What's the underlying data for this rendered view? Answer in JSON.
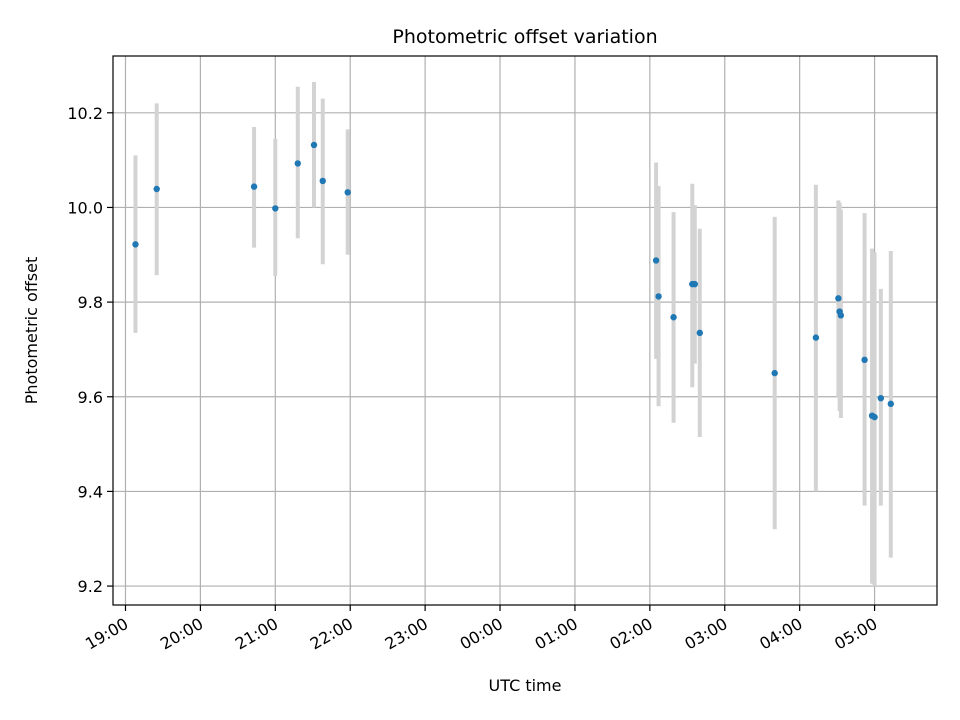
{
  "chart_data": {
    "type": "scatter",
    "title": "Photometric offset variation",
    "xlabel": "UTC time",
    "ylabel": "Photometric offset",
    "xlim": [
      "18:50",
      "05:50"
    ],
    "ylim": [
      9.16,
      10.32
    ],
    "x_ticks": [
      "19:00",
      "20:00",
      "21:00",
      "22:00",
      "23:00",
      "00:00",
      "01:00",
      "02:00",
      "03:00",
      "04:00",
      "05:00"
    ],
    "y_ticks": [
      9.2,
      9.4,
      9.6,
      9.8,
      10.0,
      10.2
    ],
    "grid": true,
    "marker_color": "#1f77b4",
    "errorbar_color": "#d3d3d3",
    "points": [
      {
        "time": "19:08",
        "y": 9.922,
        "low": 9.735,
        "high": 10.11
      },
      {
        "time": "19:25",
        "y": 10.039,
        "low": 9.857,
        "high": 10.22
      },
      {
        "time": "20:43",
        "y": 10.044,
        "low": 9.915,
        "high": 10.17
      },
      {
        "time": "21:00",
        "y": 9.998,
        "low": 9.855,
        "high": 10.145
      },
      {
        "time": "21:18",
        "y": 10.093,
        "low": 9.935,
        "high": 10.255
      },
      {
        "time": "21:31",
        "y": 10.132,
        "low": 10.0,
        "high": 10.265
      },
      {
        "time": "21:38",
        "y": 10.056,
        "low": 9.88,
        "high": 10.23
      },
      {
        "time": "21:58",
        "y": 10.032,
        "low": 9.9,
        "high": 10.165
      },
      {
        "time": "02:05",
        "y": 9.888,
        "low": 9.68,
        "high": 10.095
      },
      {
        "time": "02:07",
        "y": 9.812,
        "low": 9.58,
        "high": 10.045
      },
      {
        "time": "02:19",
        "y": 9.768,
        "low": 9.545,
        "high": 9.99
      },
      {
        "time": "02:34",
        "y": 9.838,
        "low": 9.62,
        "high": 10.05
      },
      {
        "time": "02:36",
        "y": 9.838,
        "low": 9.67,
        "high": 10.005
      },
      {
        "time": "02:40",
        "y": 9.735,
        "low": 9.515,
        "high": 9.955
      },
      {
        "time": "03:40",
        "y": 9.65,
        "low": 9.32,
        "high": 9.98
      },
      {
        "time": "04:13",
        "y": 9.725,
        "low": 9.4,
        "high": 10.048
      },
      {
        "time": "04:31",
        "y": 9.808,
        "low": 9.6,
        "high": 10.015
      },
      {
        "time": "04:32",
        "y": 9.78,
        "low": 9.57,
        "high": 10.01
      },
      {
        "time": "04:33",
        "y": 9.772,
        "low": 9.555,
        "high": 9.995
      },
      {
        "time": "04:52",
        "y": 9.678,
        "low": 9.37,
        "high": 9.988
      },
      {
        "time": "04:58",
        "y": 9.56,
        "low": 9.205,
        "high": 9.913
      },
      {
        "time": "05:00",
        "y": 9.557,
        "low": 9.2,
        "high": 9.905
      },
      {
        "time": "05:05",
        "y": 9.597,
        "low": 9.37,
        "high": 9.828
      },
      {
        "time": "05:13",
        "y": 9.585,
        "low": 9.26,
        "high": 9.908
      }
    ]
  }
}
